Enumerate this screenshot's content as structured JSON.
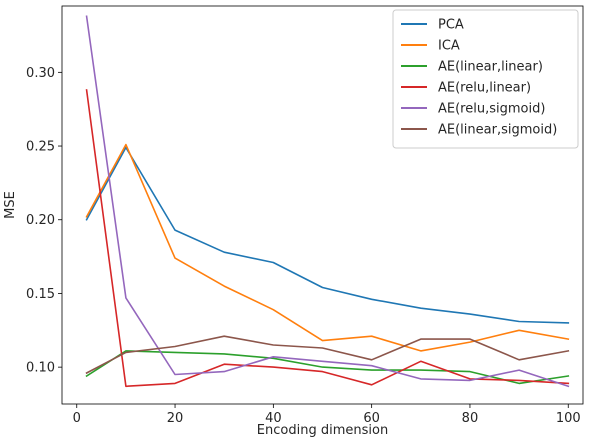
{
  "chart_data": {
    "type": "line",
    "xlabel": "Encoding dimension",
    "ylabel": "MSE",
    "xlim": [
      -3,
      103
    ],
    "ylim": [
      0.075,
      0.345
    ],
    "xticks": [
      0,
      20,
      40,
      60,
      80,
      100
    ],
    "yticks": [
      0.1,
      0.15,
      0.2,
      0.25,
      0.3
    ],
    "grid": false,
    "legend_position": "top-right",
    "x": [
      2,
      10,
      20,
      30,
      40,
      50,
      60,
      70,
      80,
      90,
      100
    ],
    "series": [
      {
        "name": "PCA",
        "color": "#1f77b4",
        "values": [
          0.2,
          0.249,
          0.193,
          0.178,
          0.171,
          0.154,
          0.146,
          0.14,
          0.136,
          0.131,
          0.13
        ]
      },
      {
        "name": "ICA",
        "color": "#ff7f0e",
        "values": [
          0.202,
          0.251,
          0.174,
          0.155,
          0.139,
          0.118,
          0.121,
          0.111,
          0.117,
          0.125,
          0.119
        ]
      },
      {
        "name": "AE(linear,linear)",
        "color": "#2ca02c",
        "values": [
          0.094,
          0.111,
          0.11,
          0.109,
          0.106,
          0.1,
          0.098,
          0.098,
          0.097,
          0.089,
          0.094
        ]
      },
      {
        "name": "AE(relu,linear)",
        "color": "#d62728",
        "values": [
          0.288,
          0.087,
          0.089,
          0.102,
          0.1,
          0.097,
          0.088,
          0.104,
          0.092,
          0.091,
          0.089
        ]
      },
      {
        "name": "AE(relu,sigmoid)",
        "color": "#9467bd",
        "values": [
          0.338,
          0.147,
          0.095,
          0.097,
          0.107,
          0.104,
          0.101,
          0.092,
          0.091,
          0.098,
          0.087
        ]
      },
      {
        "name": "AE(linear,sigmoid)",
        "color": "#8c564b",
        "values": [
          0.096,
          0.11,
          0.114,
          0.121,
          0.115,
          0.113,
          0.105,
          0.119,
          0.119,
          0.105,
          0.111
        ]
      }
    ]
  }
}
